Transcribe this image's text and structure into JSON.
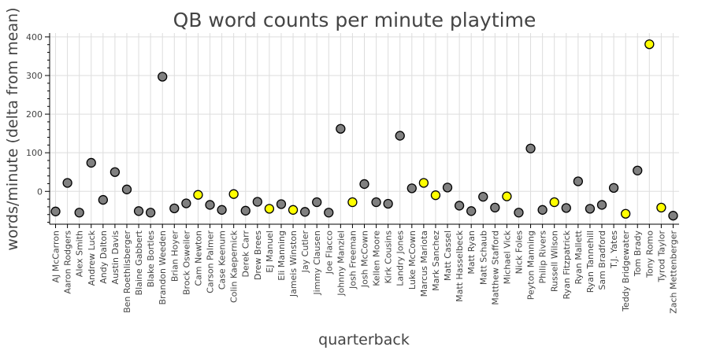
{
  "chart_data": {
    "type": "scatter",
    "title": "QB word counts per minute playtime",
    "xlabel": "quarterback",
    "ylabel": "words/minute (delta from mean)",
    "ylim": [
      -85,
      410
    ],
    "yticks": [
      0,
      100,
      200,
      300,
      400
    ],
    "grid": true,
    "legend": "none",
    "colors": {
      "default": "#808080",
      "highlight": "#ffff00",
      "outline": "#000000"
    },
    "points": [
      {
        "qb": "AJ McCarron",
        "value": -52,
        "highlight": false
      },
      {
        "qb": "Aaron Rodgers",
        "value": 22,
        "highlight": false
      },
      {
        "qb": "Alex Smith",
        "value": -55,
        "highlight": false
      },
      {
        "qb": "Andrew Luck",
        "value": 74,
        "highlight": false
      },
      {
        "qb": "Andy Dalton",
        "value": -22,
        "highlight": false
      },
      {
        "qb": "Austin Davis",
        "value": 50,
        "highlight": false
      },
      {
        "qb": "Ben Roethlisberger",
        "value": 5,
        "highlight": false
      },
      {
        "qb": "Blaine Gabbert",
        "value": -51,
        "highlight": false
      },
      {
        "qb": "Blake Bortles",
        "value": -55,
        "highlight": false
      },
      {
        "qb": "Brandon Weeden",
        "value": 297,
        "highlight": false
      },
      {
        "qb": "Brian Hoyer",
        "value": -44,
        "highlight": false
      },
      {
        "qb": "Brock Osweiler",
        "value": -31,
        "highlight": false
      },
      {
        "qb": "Cam Newton",
        "value": -9,
        "highlight": true
      },
      {
        "qb": "Carson Palmer",
        "value": -35,
        "highlight": false
      },
      {
        "qb": "Case Keenum",
        "value": -48,
        "highlight": false
      },
      {
        "qb": "Colin Kaepernick",
        "value": -7,
        "highlight": true
      },
      {
        "qb": "Derek Carr",
        "value": -50,
        "highlight": false
      },
      {
        "qb": "Drew Brees",
        "value": -27,
        "highlight": false
      },
      {
        "qb": "EJ Manuel",
        "value": -45,
        "highlight": true
      },
      {
        "qb": "Eli Manning",
        "value": -33,
        "highlight": false
      },
      {
        "qb": "Jameis Winston",
        "value": -48,
        "highlight": true
      },
      {
        "qb": "Jay Cutler",
        "value": -53,
        "highlight": false
      },
      {
        "qb": "Jimmy Clausen",
        "value": -28,
        "highlight": false
      },
      {
        "qb": "Joe Flacco",
        "value": -55,
        "highlight": false
      },
      {
        "qb": "Johnny Manziel",
        "value": 162,
        "highlight": false
      },
      {
        "qb": "Josh Freeman",
        "value": -28,
        "highlight": true
      },
      {
        "qb": "Josh McCown",
        "value": 19,
        "highlight": false
      },
      {
        "qb": "Kellen Moore",
        "value": -28,
        "highlight": false
      },
      {
        "qb": "Kirk Cousins",
        "value": -32,
        "highlight": false
      },
      {
        "qb": "Landry Jones",
        "value": 144,
        "highlight": false
      },
      {
        "qb": "Luke McCown",
        "value": 8,
        "highlight": false
      },
      {
        "qb": "Marcus Mariota",
        "value": 22,
        "highlight": true
      },
      {
        "qb": "Mark Sanchez",
        "value": -10,
        "highlight": true
      },
      {
        "qb": "Matt Cassel",
        "value": 10,
        "highlight": false
      },
      {
        "qb": "Matt Hasselbeck",
        "value": -37,
        "highlight": false
      },
      {
        "qb": "Matt Ryan",
        "value": -51,
        "highlight": false
      },
      {
        "qb": "Matt Schaub",
        "value": -14,
        "highlight": false
      },
      {
        "qb": "Matthew Stafford",
        "value": -42,
        "highlight": false
      },
      {
        "qb": "Michael Vick",
        "value": -13,
        "highlight": true
      },
      {
        "qb": "Nick Foles",
        "value": -55,
        "highlight": false
      },
      {
        "qb": "Peyton Manning",
        "value": 111,
        "highlight": false
      },
      {
        "qb": "Philip Rivers",
        "value": -48,
        "highlight": false
      },
      {
        "qb": "Russell Wilson",
        "value": -28,
        "highlight": true
      },
      {
        "qb": "Ryan Fitzpatrick",
        "value": -43,
        "highlight": false
      },
      {
        "qb": "Ryan Mallett",
        "value": 26,
        "highlight": false
      },
      {
        "qb": "Ryan Tannehill",
        "value": -45,
        "highlight": false
      },
      {
        "qb": "Sam Bradford",
        "value": -35,
        "highlight": false
      },
      {
        "qb": "T.J. Yates",
        "value": 9,
        "highlight": false
      },
      {
        "qb": "Teddy Bridgewater",
        "value": -58,
        "highlight": true
      },
      {
        "qb": "Tom Brady",
        "value": 54,
        "highlight": false
      },
      {
        "qb": "Tony Romo",
        "value": 381,
        "highlight": true
      },
      {
        "qb": "Tyrod Taylor",
        "value": -42,
        "highlight": true
      },
      {
        "qb": "Zach Mettenberger",
        "value": -63,
        "highlight": false
      }
    ]
  }
}
